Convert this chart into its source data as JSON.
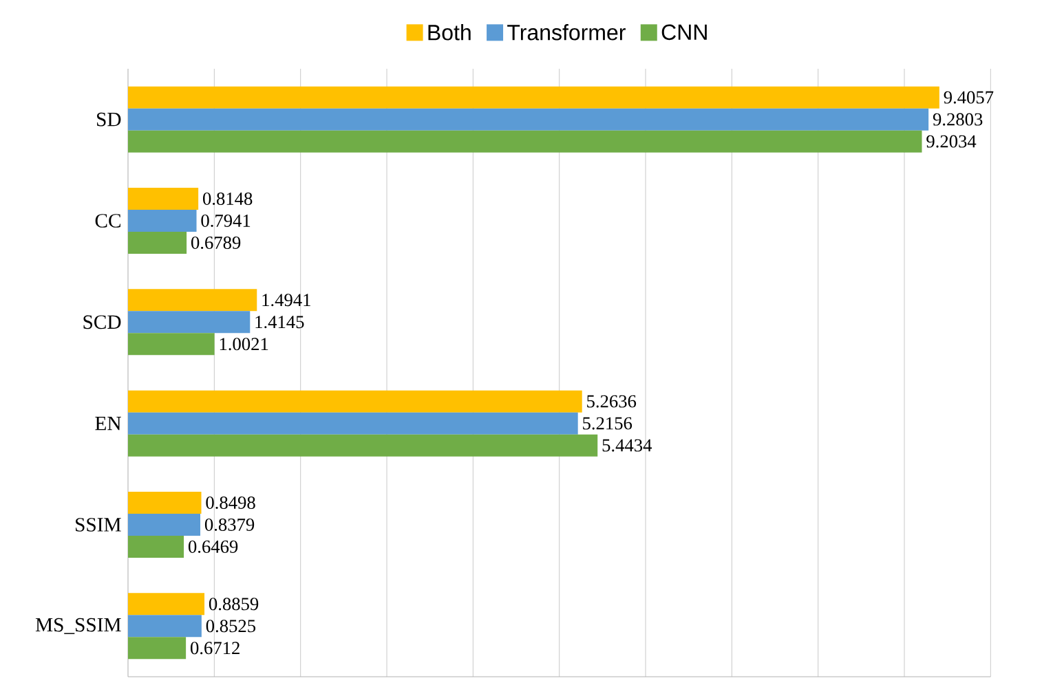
{
  "chart_data": {
    "type": "bar",
    "orientation": "horizontal",
    "categories": [
      "SD",
      "CC",
      "SCD",
      "EN",
      "SSIM",
      "MS_SSIM"
    ],
    "series": [
      {
        "name": "Both",
        "color": "#ffc000",
        "values": [
          9.4057,
          0.8148,
          1.4941,
          5.2636,
          0.8498,
          0.8859
        ]
      },
      {
        "name": "Transformer",
        "color": "#5b9bd5",
        "values": [
          9.2803,
          0.7941,
          1.4145,
          5.2156,
          0.8379,
          0.8525
        ]
      },
      {
        "name": "CNN",
        "color": "#70ad47",
        "values": [
          9.2034,
          0.6789,
          1.0021,
          5.4434,
          0.6469,
          0.6712
        ]
      }
    ],
    "xlim": [
      0,
      10
    ],
    "xticks": [
      {
        "value": 1,
        "label": null
      },
      {
        "value": 2,
        "label": null
      },
      {
        "value": 3,
        "label": null
      },
      {
        "value": 4,
        "label": null
      },
      {
        "value": 5,
        "label": null
      },
      {
        "value": 6,
        "label": null
      },
      {
        "value": 7,
        "label": null
      },
      {
        "value": 8,
        "label": null
      },
      {
        "value": 9,
        "label": null
      },
      {
        "value": 10,
        "label": null
      }
    ],
    "grid": "x",
    "legend": "top",
    "data_labels": true,
    "tick_labels": "y"
  }
}
